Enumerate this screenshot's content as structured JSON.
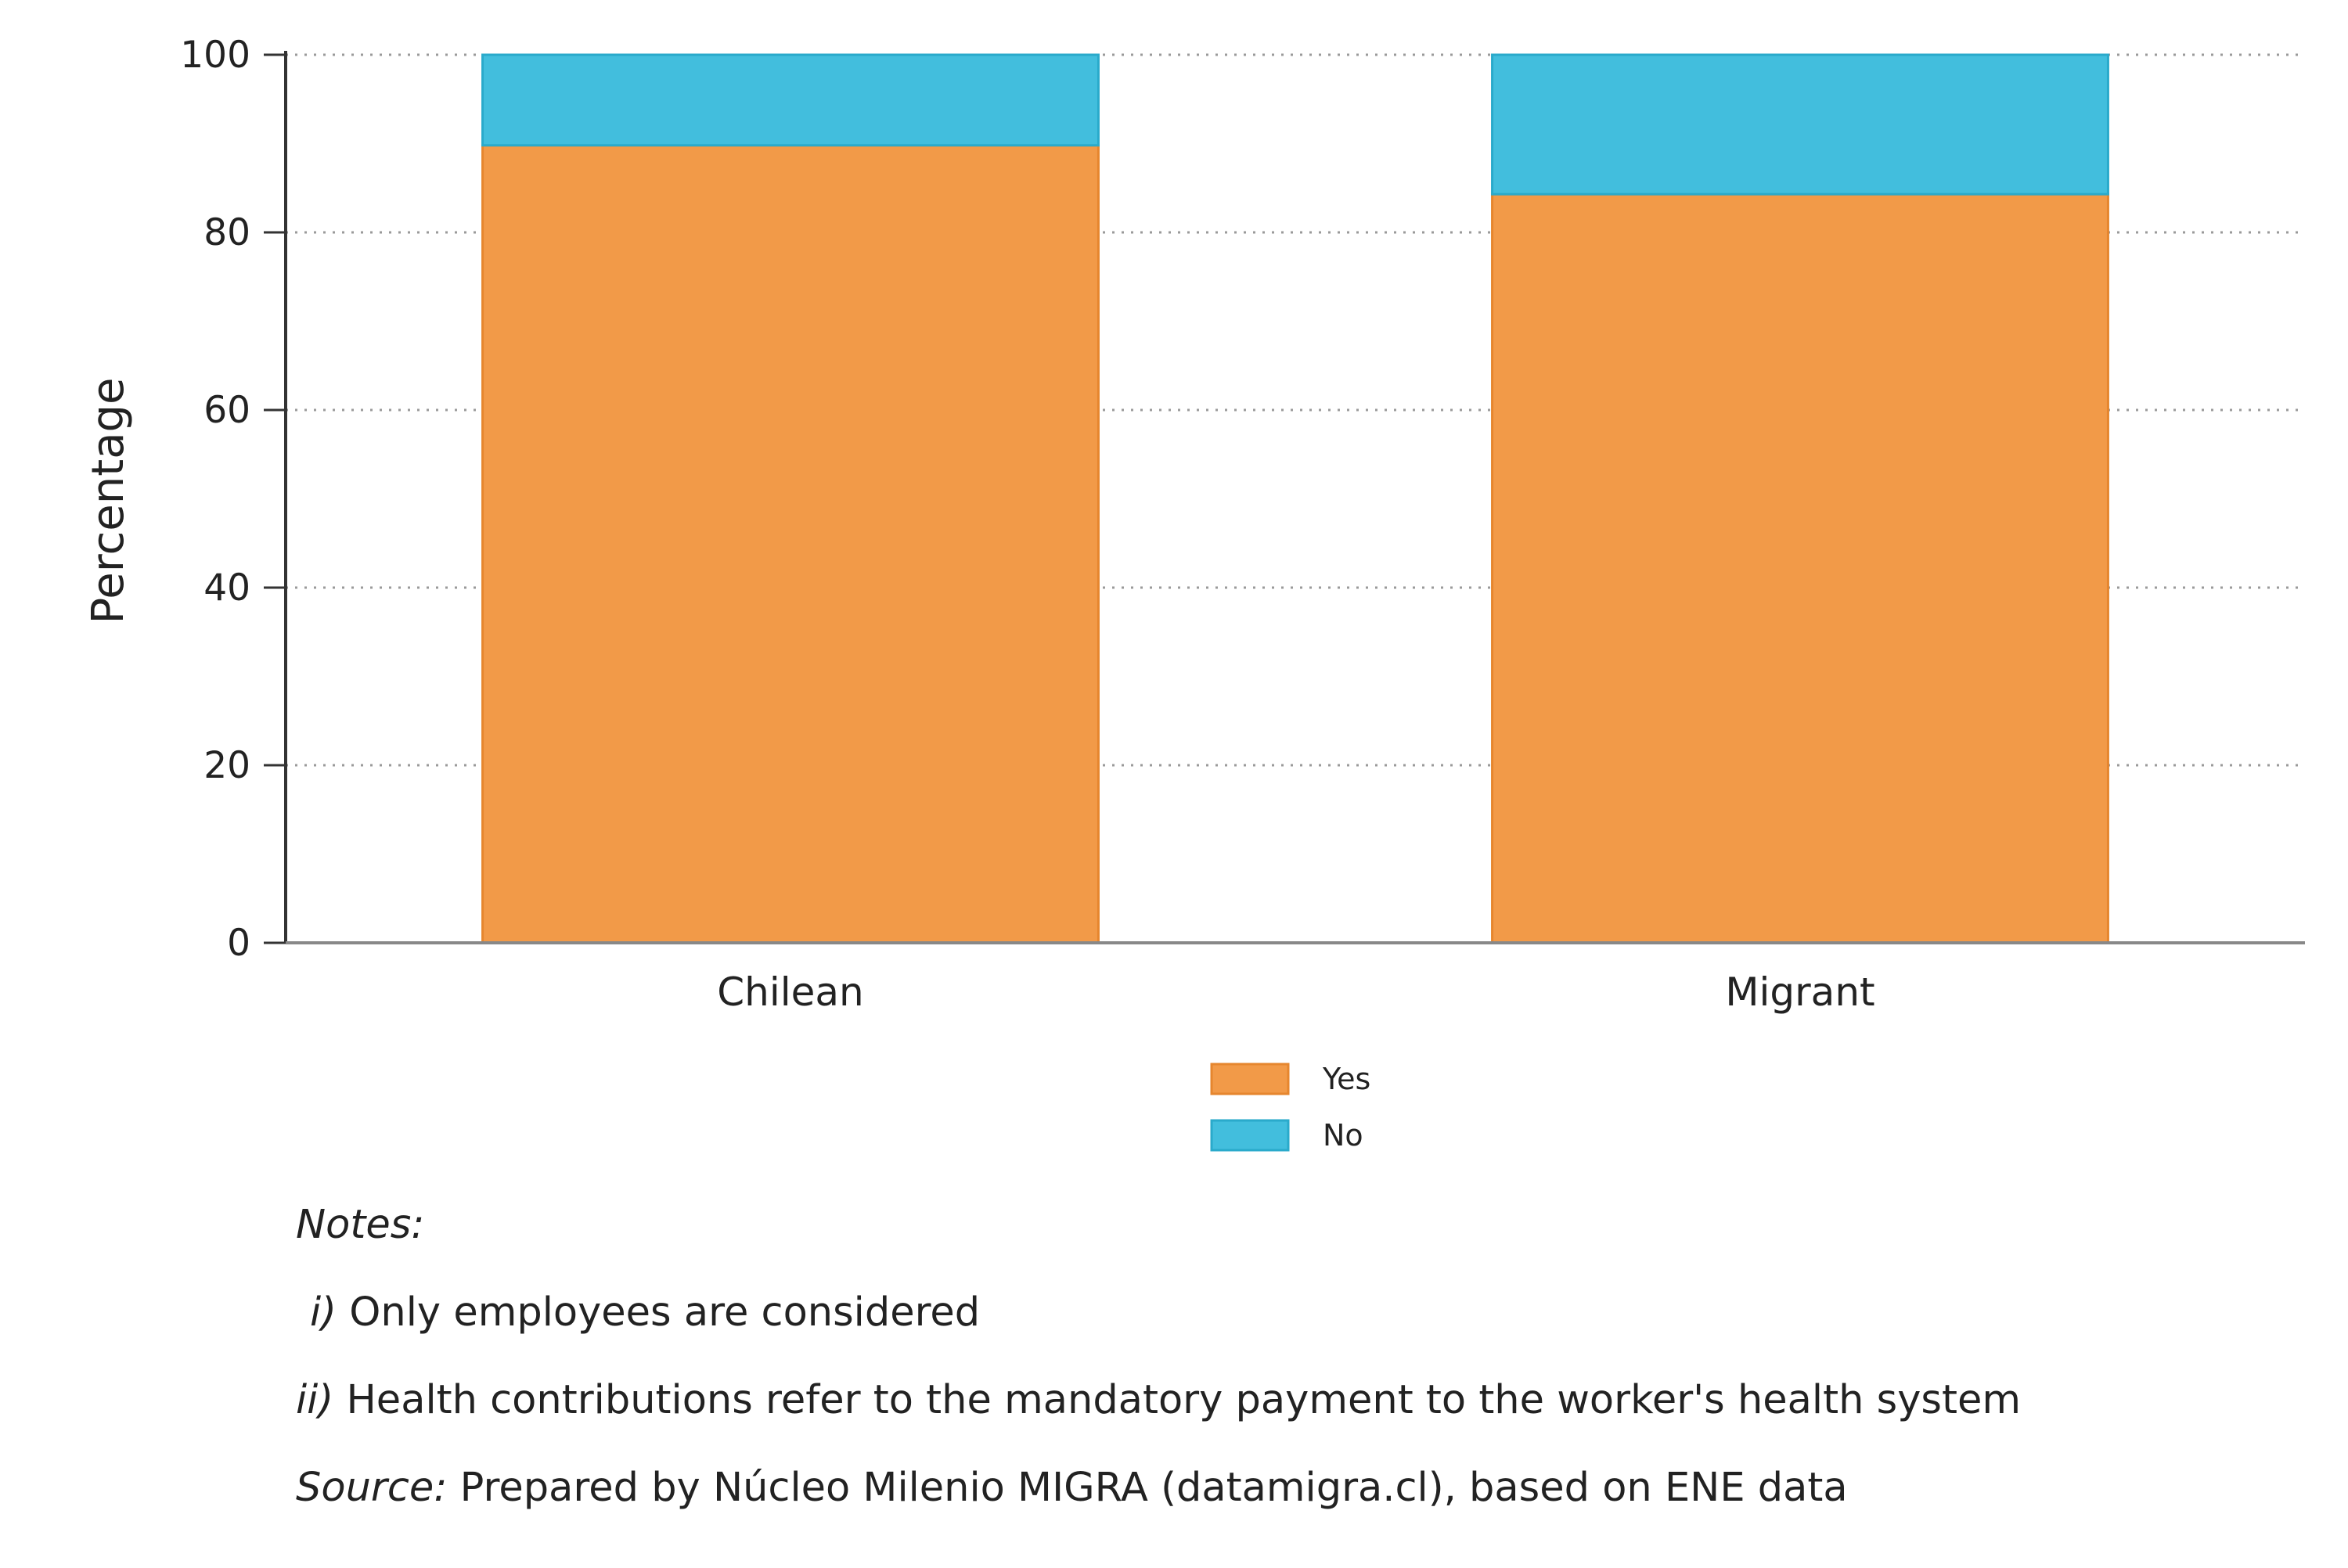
{
  "chart_data": {
    "type": "bar",
    "stacked": true,
    "categories": [
      "Chilean",
      "Migrant"
    ],
    "series": [
      {
        "name": "Yes",
        "values": [
          89.8,
          84.3
        ],
        "color": "#f29a48"
      },
      {
        "name": "No",
        "values": [
          10.2,
          15.7
        ],
        "color": "#42bedd"
      }
    ],
    "xlabel": "",
    "ylabel": "Percentage",
    "ylim": [
      0,
      100
    ],
    "yticks": [
      0,
      20,
      40,
      60,
      80,
      100
    ],
    "grid": "horizontal dotted",
    "legend_position": "bottom-center"
  },
  "notes": {
    "heading": "Notes:",
    "items": [
      {
        "marker": "i)",
        "text": " Only employees are considered"
      },
      {
        "marker": "ii)",
        "text": " Health contributions refer to the mandatory payment to the worker's health system"
      }
    ],
    "source_label": "Source:",
    "source_text": " Prepared by Núcleo Milenio MIGRA (datamigra.cl), based on ENE data"
  }
}
